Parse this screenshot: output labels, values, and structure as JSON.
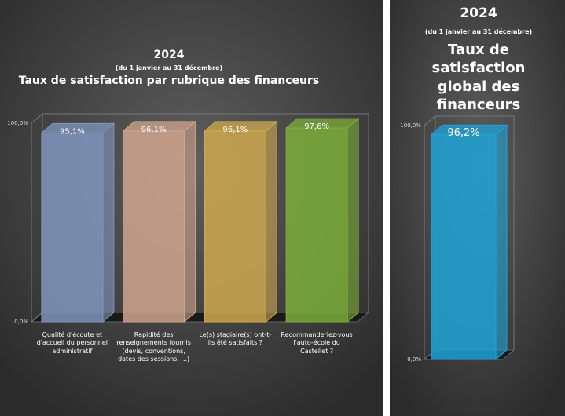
{
  "chart_data": [
    {
      "type": "bar",
      "supertitle": "2024",
      "subtitle": "(du 1 janvier au 31 décembre)",
      "title": "Taux de satisfaction par rubrique des financeurs",
      "categories": [
        "Qualité d'écoute et d'accueil du personnel administratif",
        "Rapidité des renseignements fournis (devis, conventions, dates des sessions, ...)",
        "Le(s) stagiaire(s) ont-t-ils été satisfaits ?",
        "Recommanderiez-vous l'auto-école du Castellet ?"
      ],
      "values": [
        95.1,
        96.1,
        96.1,
        97.6
      ],
      "value_labels": [
        "95,1%",
        "96,1%",
        "96,1%",
        "97,6%"
      ],
      "colors": [
        "#8196bd",
        "#cfa48e",
        "#cfa94f",
        "#7dad3a"
      ],
      "ylim": [
        0,
        100
      ],
      "yticks": [
        {
          "value": 0,
          "label": "0,0%"
        },
        {
          "value": 100,
          "label": "100,0%"
        }
      ]
    },
    {
      "type": "bar",
      "supertitle": "2024",
      "subtitle": "(du 1 janvier au 31 décembre)",
      "title": "Taux de satisfaction global des financeurs",
      "categories": [
        null
      ],
      "values": [
        96.2
      ],
      "value_labels": [
        "96,2%"
      ],
      "colors": [
        "#1ea3d6"
      ],
      "ylim": [
        0,
        100
      ],
      "yticks": [
        {
          "value": 0,
          "label": "0,0%"
        },
        {
          "value": 100,
          "label": "100,0%"
        }
      ]
    }
  ]
}
